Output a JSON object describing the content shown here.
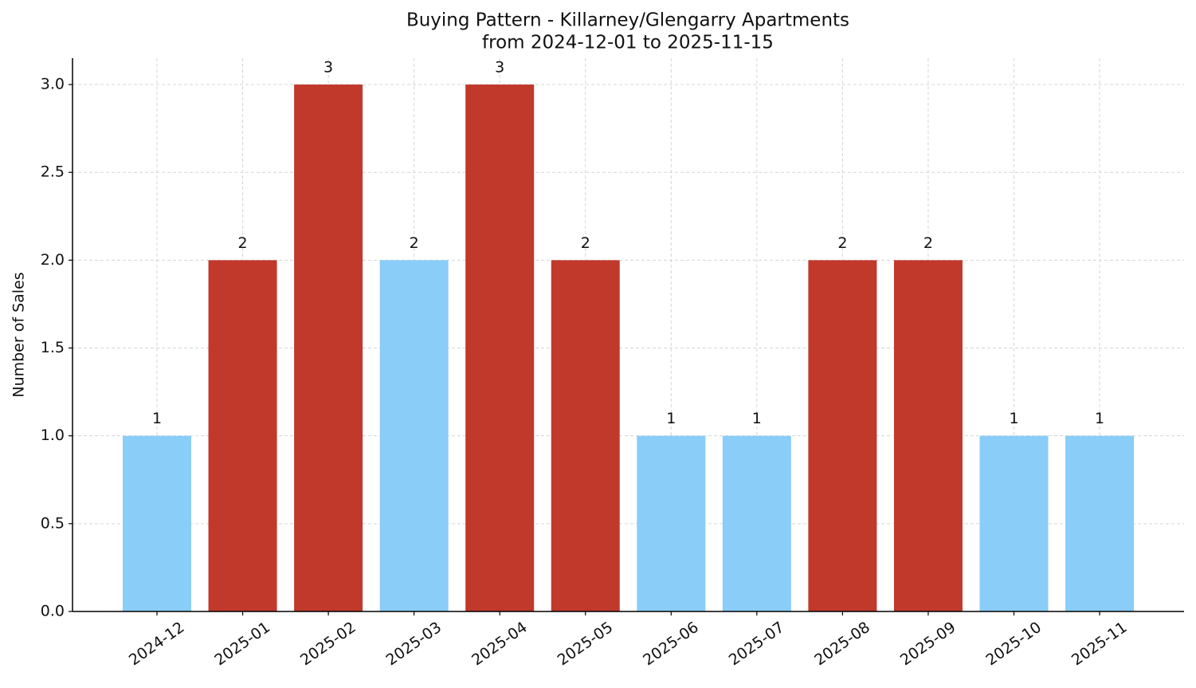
{
  "chart_data": {
    "type": "bar",
    "title": "Buying Pattern - Killarney/Glengarry Apartments",
    "subtitle": "from 2024-12-01 to 2025-11-15",
    "y_label": "Number of Sales",
    "categories": [
      "2024-12",
      "2025-01",
      "2025-02",
      "2025-03",
      "2025-04",
      "2025-05",
      "2025-06",
      "2025-07",
      "2025-08",
      "2025-09",
      "2025-10",
      "2025-11"
    ],
    "values": [
      1,
      2,
      3,
      2,
      3,
      2,
      1,
      1,
      2,
      2,
      1,
      1
    ],
    "colors": [
      "#89cdf8",
      "#c0392b",
      "#c0392b",
      "#89cdf8",
      "#c0392b",
      "#c0392b",
      "#89cdf8",
      "#89cdf8",
      "#c0392b",
      "#c0392b",
      "#89cdf8",
      "#89cdf8"
    ],
    "ylim": [
      0,
      3.15
    ],
    "yticks": [
      {
        "value": 0,
        "label": "0.0"
      },
      0.5,
      {
        "value": 1,
        "label": "1.0"
      },
      1.5,
      {
        "value": 2,
        "label": "2.0"
      },
      2.5,
      {
        "value": 3,
        "label": "3.0"
      }
    ],
    "grid": true
  }
}
